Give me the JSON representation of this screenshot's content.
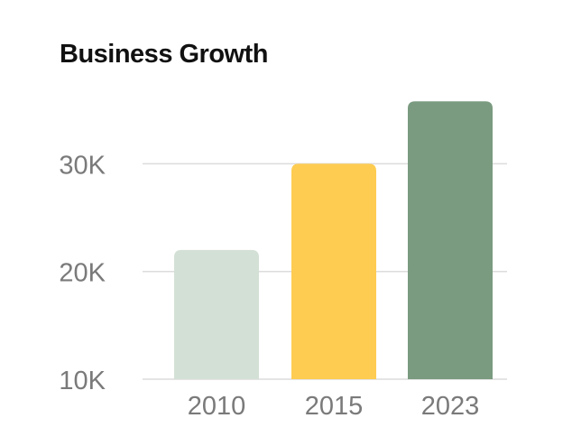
{
  "chart_data": {
    "type": "bar",
    "title": "Business Growth",
    "categories": [
      "2010",
      "2015",
      "2023"
    ],
    "values": [
      22000,
      30000,
      35800
    ],
    "colors": [
      "#d3e0d6",
      "#fecc51",
      "#7a9b80"
    ],
    "yticks": [
      {
        "value": 10000,
        "label": "10K"
      },
      {
        "value": 20000,
        "label": "20K"
      },
      {
        "value": 30000,
        "label": "30K"
      }
    ],
    "ylim": [
      10000,
      38000
    ],
    "xlabel": "",
    "ylabel": "",
    "grid": true,
    "legend": "none"
  }
}
